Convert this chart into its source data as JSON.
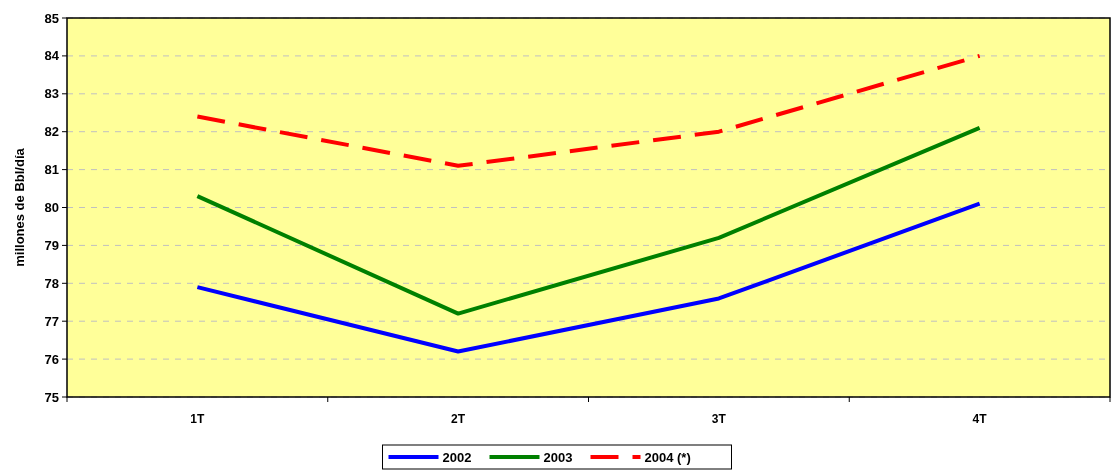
{
  "chart_data": {
    "type": "line",
    "ylabel": "millones de Bbl/día",
    "categories": [
      "1T",
      "2T",
      "3T",
      "4T"
    ],
    "series": [
      {
        "name": "2002",
        "color": "#0000ff",
        "values": [
          77.9,
          76.2,
          77.6,
          80.1
        ]
      },
      {
        "name": "2003",
        "color": "#008000",
        "values": [
          80.3,
          77.2,
          79.2,
          82.1
        ]
      },
      {
        "name": "2004 (*)",
        "color": "#ff0000",
        "values": [
          82.4,
          81.1,
          82.0,
          84.0
        ],
        "line_style": "dashed"
      }
    ],
    "ylim": [
      75,
      85
    ],
    "yticks": [
      75,
      76,
      77,
      78,
      79,
      80,
      81,
      82,
      83,
      84,
      85
    ],
    "grid": "y",
    "legend": "bottom",
    "marker": "none",
    "line_style": "solid"
  }
}
